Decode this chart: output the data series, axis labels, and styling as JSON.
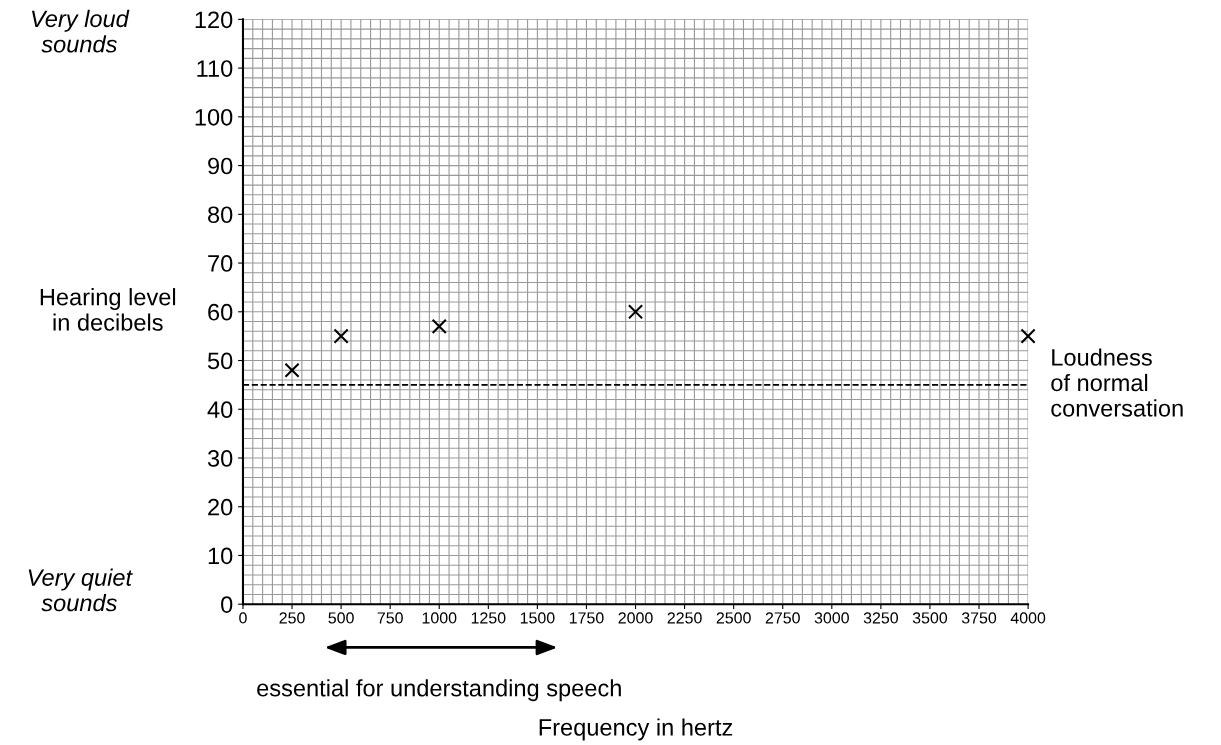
{
  "chart_data": {
    "type": "scatter",
    "xlabel": "Frequency in hertz",
    "ylabel": "Hearing level\nin decibels",
    "x": [
      250,
      500,
      1000,
      2000,
      4000
    ],
    "series": [
      {
        "color": "#000000",
        "values": [
          48,
          55,
          57,
          60,
          55
        ]
      }
    ],
    "marker": "cross",
    "grid": true,
    "xlim": [
      0,
      4000
    ],
    "xticks": [
      0,
      250,
      500,
      750,
      1000,
      1250,
      1500,
      1750,
      2000,
      2250,
      2500,
      2750,
      3000,
      3250,
      3500,
      3750,
      4000
    ],
    "ylim": [
      0,
      120
    ],
    "yticks": [
      0,
      10,
      20,
      30,
      40,
      50,
      60,
      70,
      80,
      90,
      100,
      110,
      120
    ],
    "ref_lines": [
      {
        "axis": "y",
        "value": 45,
        "label": "Loudness\nof normal\nconversation",
        "color": "#000000",
        "line_style": "dashed"
      }
    ],
    "annotations": [
      "Very loud\nsounds",
      "Very quiet\nsounds",
      "essential for understanding speech"
    ]
  }
}
